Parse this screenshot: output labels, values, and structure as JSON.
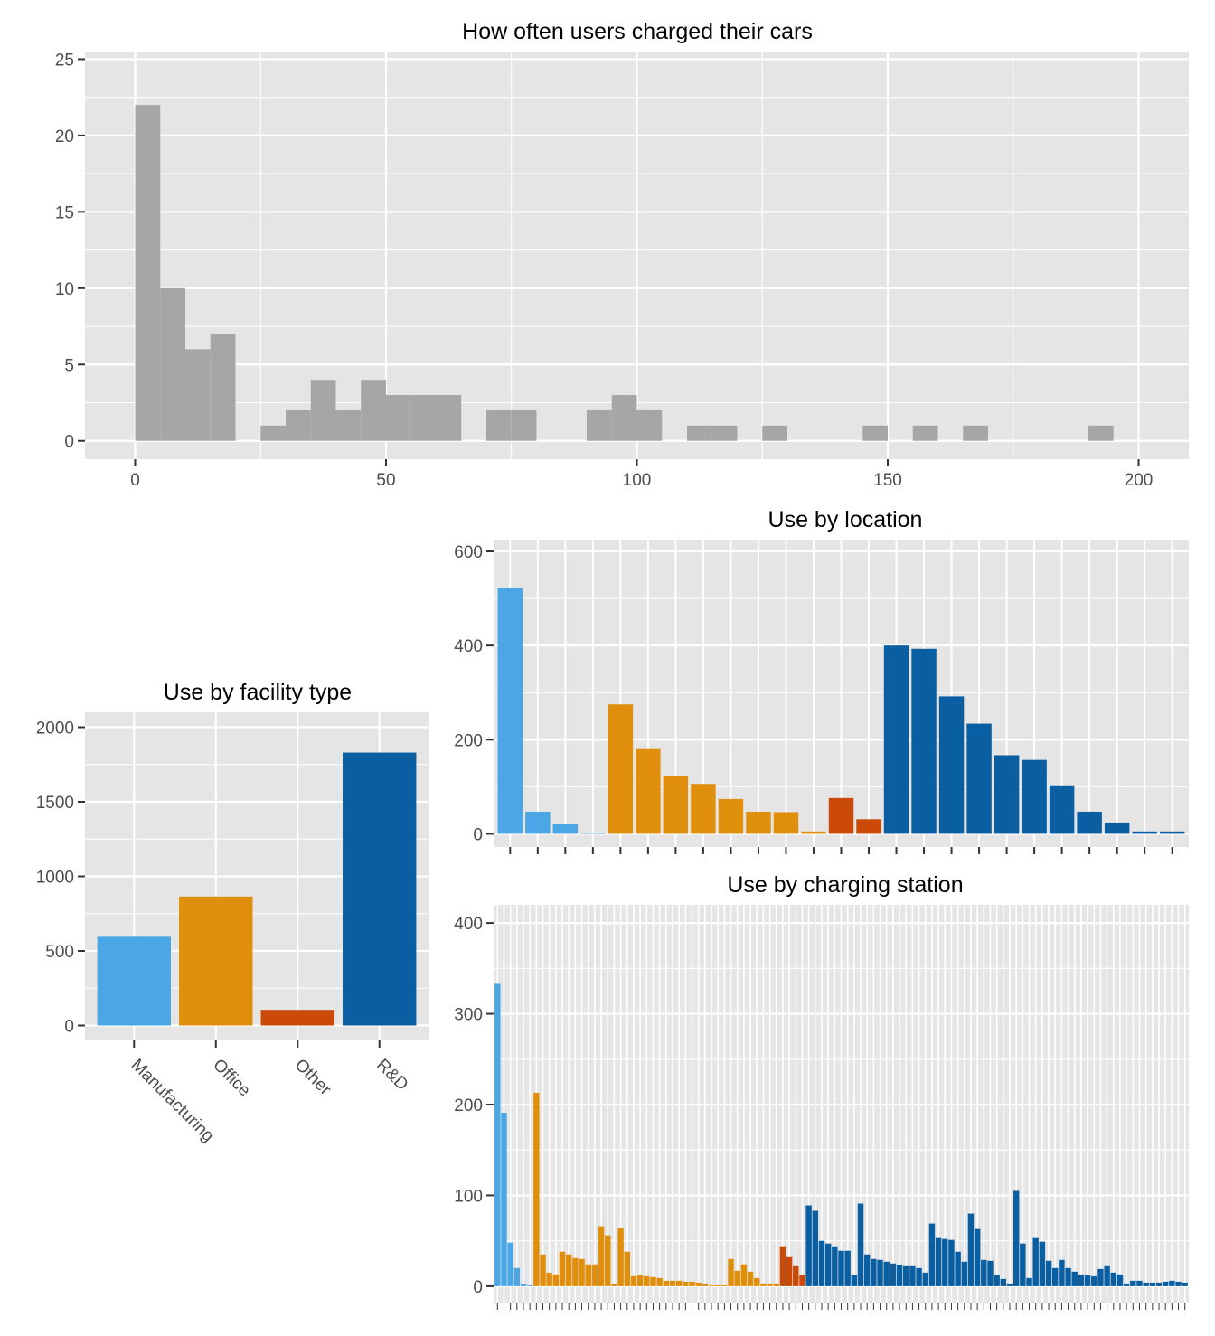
{
  "colors": {
    "panel": "#e5e5e5",
    "grid": "#ffffff",
    "hist": "#a6a6a6",
    "manufacturing": "#4aa6e4",
    "office": "#e08f0c",
    "other": "#cb4a08",
    "rd": "#0a5fa2"
  },
  "chart_data": [
    {
      "id": "hist",
      "type": "bar",
      "title": "How often users charged their cars",
      "xlabel": "",
      "ylabel": "",
      "xlim": [
        -10,
        210
      ],
      "ylim": [
        -1.2,
        25.5
      ],
      "bin_width": 5,
      "x_ticks": [
        0,
        50,
        100,
        150,
        200
      ],
      "y_ticks": [
        0,
        5,
        10,
        15,
        20,
        25
      ],
      "bins": [
        {
          "x": 0,
          "count": 22
        },
        {
          "x": 5,
          "count": 10
        },
        {
          "x": 10,
          "count": 6
        },
        {
          "x": 15,
          "count": 7
        },
        {
          "x": 20,
          "count": 0
        },
        {
          "x": 25,
          "count": 1
        },
        {
          "x": 30,
          "count": 2
        },
        {
          "x": 35,
          "count": 4
        },
        {
          "x": 40,
          "count": 2
        },
        {
          "x": 45,
          "count": 4
        },
        {
          "x": 50,
          "count": 3
        },
        {
          "x": 55,
          "count": 3
        },
        {
          "x": 60,
          "count": 3
        },
        {
          "x": 65,
          "count": 0
        },
        {
          "x": 70,
          "count": 2
        },
        {
          "x": 75,
          "count": 2
        },
        {
          "x": 80,
          "count": 0
        },
        {
          "x": 85,
          "count": 0
        },
        {
          "x": 90,
          "count": 2
        },
        {
          "x": 95,
          "count": 3
        },
        {
          "x": 100,
          "count": 2
        },
        {
          "x": 105,
          "count": 0
        },
        {
          "x": 110,
          "count": 1
        },
        {
          "x": 115,
          "count": 1
        },
        {
          "x": 120,
          "count": 0
        },
        {
          "x": 125,
          "count": 1
        },
        {
          "x": 130,
          "count": 0
        },
        {
          "x": 135,
          "count": 0
        },
        {
          "x": 140,
          "count": 0
        },
        {
          "x": 145,
          "count": 1
        },
        {
          "x": 150,
          "count": 0
        },
        {
          "x": 155,
          "count": 1
        },
        {
          "x": 160,
          "count": 0
        },
        {
          "x": 165,
          "count": 1
        },
        {
          "x": 170,
          "count": 0
        },
        {
          "x": 175,
          "count": 0
        },
        {
          "x": 180,
          "count": 0
        },
        {
          "x": 185,
          "count": 0
        },
        {
          "x": 190,
          "count": 1
        },
        {
          "x": 195,
          "count": 0
        }
      ]
    },
    {
      "id": "facility",
      "type": "bar",
      "title": "Use by facility type",
      "xlabel": "",
      "ylabel": "",
      "ylim": [
        -100,
        2100
      ],
      "y_ticks": [
        0,
        500,
        1000,
        1500,
        2000
      ],
      "categories": [
        "Manufacturing",
        "Office",
        "Other",
        "R&D"
      ],
      "values": [
        595,
        865,
        105,
        1830
      ],
      "groups": [
        "manufacturing",
        "office",
        "other",
        "rd"
      ]
    },
    {
      "id": "location",
      "type": "bar",
      "title": "Use by location",
      "xlabel": "",
      "ylabel": "",
      "ylim": [
        -28,
        625
      ],
      "y_ticks": [
        0,
        200,
        400,
        600
      ],
      "values": [
        522,
        47,
        20,
        2,
        275,
        180,
        123,
        106,
        74,
        47,
        46,
        5,
        76,
        31,
        400,
        393,
        292,
        234,
        167,
        157,
        103,
        47,
        24,
        5,
        5
      ],
      "groups": [
        "manufacturing",
        "manufacturing",
        "manufacturing",
        "manufacturing",
        "office",
        "office",
        "office",
        "office",
        "office",
        "office",
        "office",
        "office",
        "other",
        "other",
        "rd",
        "rd",
        "rd",
        "rd",
        "rd",
        "rd",
        "rd",
        "rd",
        "rd",
        "rd",
        "rd"
      ]
    },
    {
      "id": "station",
      "type": "bar",
      "title": "Use by charging station",
      "xlabel": "",
      "ylabel": "",
      "ylim": [
        -18,
        420
      ],
      "y_ticks": [
        0,
        100,
        200,
        300,
        400
      ],
      "values": [
        333,
        191,
        48,
        20,
        2,
        1,
        213,
        35,
        15,
        13,
        38,
        35,
        31,
        30,
        24,
        24,
        66,
        56,
        2,
        64,
        38,
        11,
        12,
        11,
        10,
        9,
        6,
        6,
        6,
        5,
        5,
        4,
        3,
        1,
        1,
        1,
        30,
        17,
        24,
        16,
        9,
        3,
        3,
        3,
        44,
        32,
        22,
        12,
        89,
        83,
        50,
        47,
        44,
        39,
        39,
        12,
        91,
        35,
        30,
        29,
        27,
        25,
        23,
        22,
        22,
        20,
        15,
        69,
        53,
        52,
        51,
        38,
        27,
        80,
        63,
        29,
        28,
        12,
        8,
        3,
        105,
        47,
        9,
        53,
        49,
        28,
        20,
        29,
        20,
        16,
        13,
        12,
        11,
        19,
        22,
        15,
        13,
        3,
        6,
        6,
        4,
        4,
        4,
        5,
        6,
        5,
        4
      ],
      "group_sizes": {
        "manufacturing": 6,
        "office": 38,
        "other": 4,
        "rd": 59
      }
    }
  ]
}
